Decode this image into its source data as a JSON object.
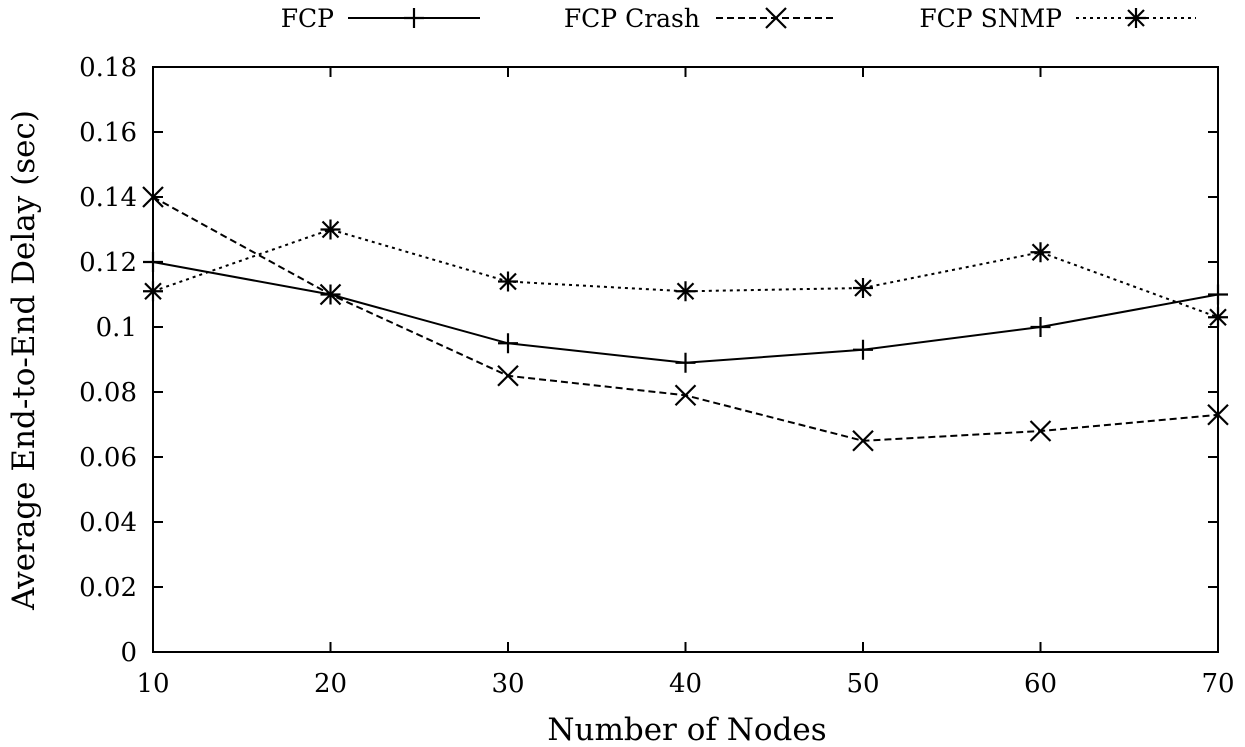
{
  "chart_data": {
    "type": "line",
    "title": "",
    "xlabel": "Number of Nodes",
    "ylabel": "Average End-to-End Delay (sec)",
    "x": [
      10,
      20,
      30,
      40,
      50,
      60,
      70
    ],
    "xlim": [
      10,
      70
    ],
    "ylim": [
      0,
      0.18
    ],
    "xticks": [
      "10",
      "20",
      "30",
      "40",
      "50",
      "60",
      "70"
    ],
    "yticks": [
      {
        "value": 0,
        "label": "0"
      },
      {
        "value": 0.02,
        "label": "0.02"
      },
      {
        "value": 0.04,
        "label": "0.04"
      },
      {
        "value": 0.06,
        "label": "0.06"
      },
      {
        "value": 0.08,
        "label": "0.08"
      },
      {
        "value": 0.1,
        "label": "0.1"
      },
      {
        "value": 0.12,
        "label": "0.12"
      },
      {
        "value": 0.14,
        "label": "0.14"
      },
      {
        "value": 0.16,
        "label": "0.16"
      },
      {
        "value": 0.18,
        "label": "0.18"
      }
    ],
    "grid": false,
    "legend_position": "top",
    "series": [
      {
        "name": "FCP",
        "marker": "plus",
        "dash": "solid",
        "color": "#000000",
        "values": [
          0.12,
          0.11,
          0.095,
          0.089,
          0.093,
          0.1,
          0.11
        ]
      },
      {
        "name": "FCP Crash",
        "marker": "cross",
        "dash": "dashed",
        "color": "#000000",
        "values": [
          0.14,
          0.11,
          0.085,
          0.079,
          0.065,
          0.068,
          0.073
        ]
      },
      {
        "name": "FCP SNMP",
        "marker": "star",
        "dash": "dotted",
        "color": "#000000",
        "values": [
          0.111,
          0.13,
          0.114,
          0.111,
          0.112,
          0.123,
          0.103
        ]
      }
    ]
  }
}
